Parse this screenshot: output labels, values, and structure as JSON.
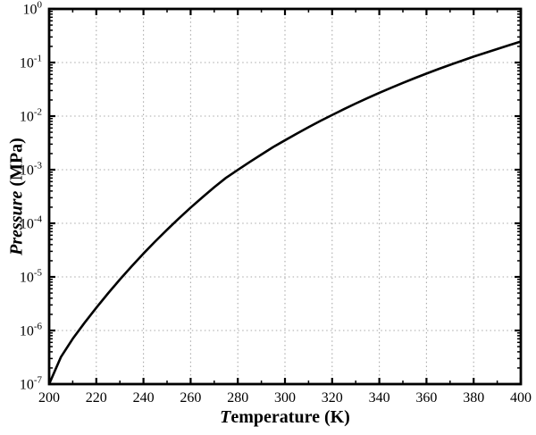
{
  "chart_data": {
    "type": "line",
    "title": "",
    "xlabel": {
      "italic": "T",
      "rest": "emperature (K)"
    },
    "ylabel": {
      "italic": "Pressure",
      "rest": " (MPa)"
    },
    "x_axis": {
      "min": 200,
      "max": 400,
      "major_ticks": [
        200,
        220,
        240,
        260,
        280,
        300,
        320,
        340,
        360,
        380,
        400
      ],
      "minor_tick_step": 10
    },
    "y_axis": {
      "scale": "log10",
      "unit": "MPa",
      "min_exp": -7,
      "max_exp": 0,
      "tick_exponents": [
        0,
        -1,
        -2,
        -3,
        -4,
        -5,
        -6,
        -7
      ],
      "tick_base": "10"
    },
    "grid": {
      "shown": true,
      "style": "dotted",
      "color": "#a9a9a9",
      "vertical_at": [
        220,
        240,
        260,
        280,
        300,
        320,
        340,
        360,
        380
      ],
      "horizontal_at_exp": [
        -1,
        -2,
        -3,
        -4,
        -5,
        -6
      ]
    },
    "legend": {
      "shown": false
    },
    "colors": {
      "curve": "#000000",
      "axes": "#000000",
      "background": "#ffffff"
    },
    "series": [
      {
        "points": [
          [
            200,
            1e-07
          ],
          [
            205,
            3.2e-07
          ],
          [
            210,
            7e-07
          ],
          [
            215,
            1.39e-06
          ],
          [
            220,
            2.65e-06
          ],
          [
            225,
            4.94e-06
          ],
          [
            230,
            8.95e-06
          ],
          [
            235,
            1.58e-05
          ],
          [
            240,
            2.73e-05
          ],
          [
            245,
            4.6e-05
          ],
          [
            250,
            7.6e-05
          ],
          [
            255,
            0.000123
          ],
          [
            260,
            0.000196
          ],
          [
            265,
            0.000306
          ],
          [
            270,
            0.00047
          ],
          [
            275,
            0.000706
          ],
          [
            280,
            0.000992
          ],
          [
            285,
            0.00139
          ],
          [
            290,
            0.00192
          ],
          [
            295,
            0.00265
          ],
          [
            300,
            0.00354
          ],
          [
            305,
            0.00471
          ],
          [
            310,
            0.00623
          ],
          [
            315,
            0.00814
          ],
          [
            320,
            0.0105
          ],
          [
            325,
            0.0135
          ],
          [
            330,
            0.0172
          ],
          [
            335,
            0.0217
          ],
          [
            340,
            0.0272
          ],
          [
            345,
            0.0338
          ],
          [
            350,
            0.0417
          ],
          [
            355,
            0.0511
          ],
          [
            360,
            0.0622
          ],
          [
            365,
            0.0753
          ],
          [
            370,
            0.0905
          ],
          [
            375,
            0.108
          ],
          [
            380,
            0.129
          ],
          [
            385,
            0.152
          ],
          [
            390,
            0.179
          ],
          [
            395,
            0.21
          ],
          [
            400,
            0.246
          ]
        ]
      }
    ]
  }
}
